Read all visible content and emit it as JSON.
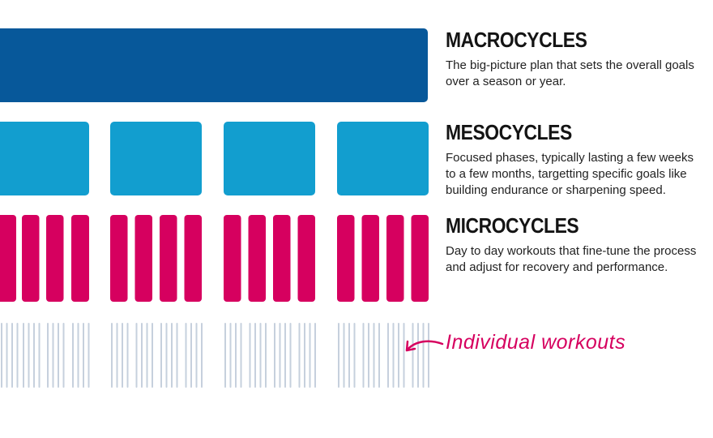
{
  "sections": [
    {
      "title": "MACROCYCLES",
      "lines": [
        "The big-picture plan that sets the overall goals",
        "over a season or year."
      ]
    },
    {
      "title": "MESOCYCLES",
      "lines": [
        "Focused phases, typically lasting a few weeks",
        "to a few months, targetting specific goals like",
        "building endurance or sharpening speed."
      ]
    },
    {
      "title": "MICROCYCLES",
      "lines": [
        "Day to day workouts that fine-tune the process",
        "and adjust for recovery and performance."
      ]
    }
  ],
  "annotation": "Individual workouts"
}
